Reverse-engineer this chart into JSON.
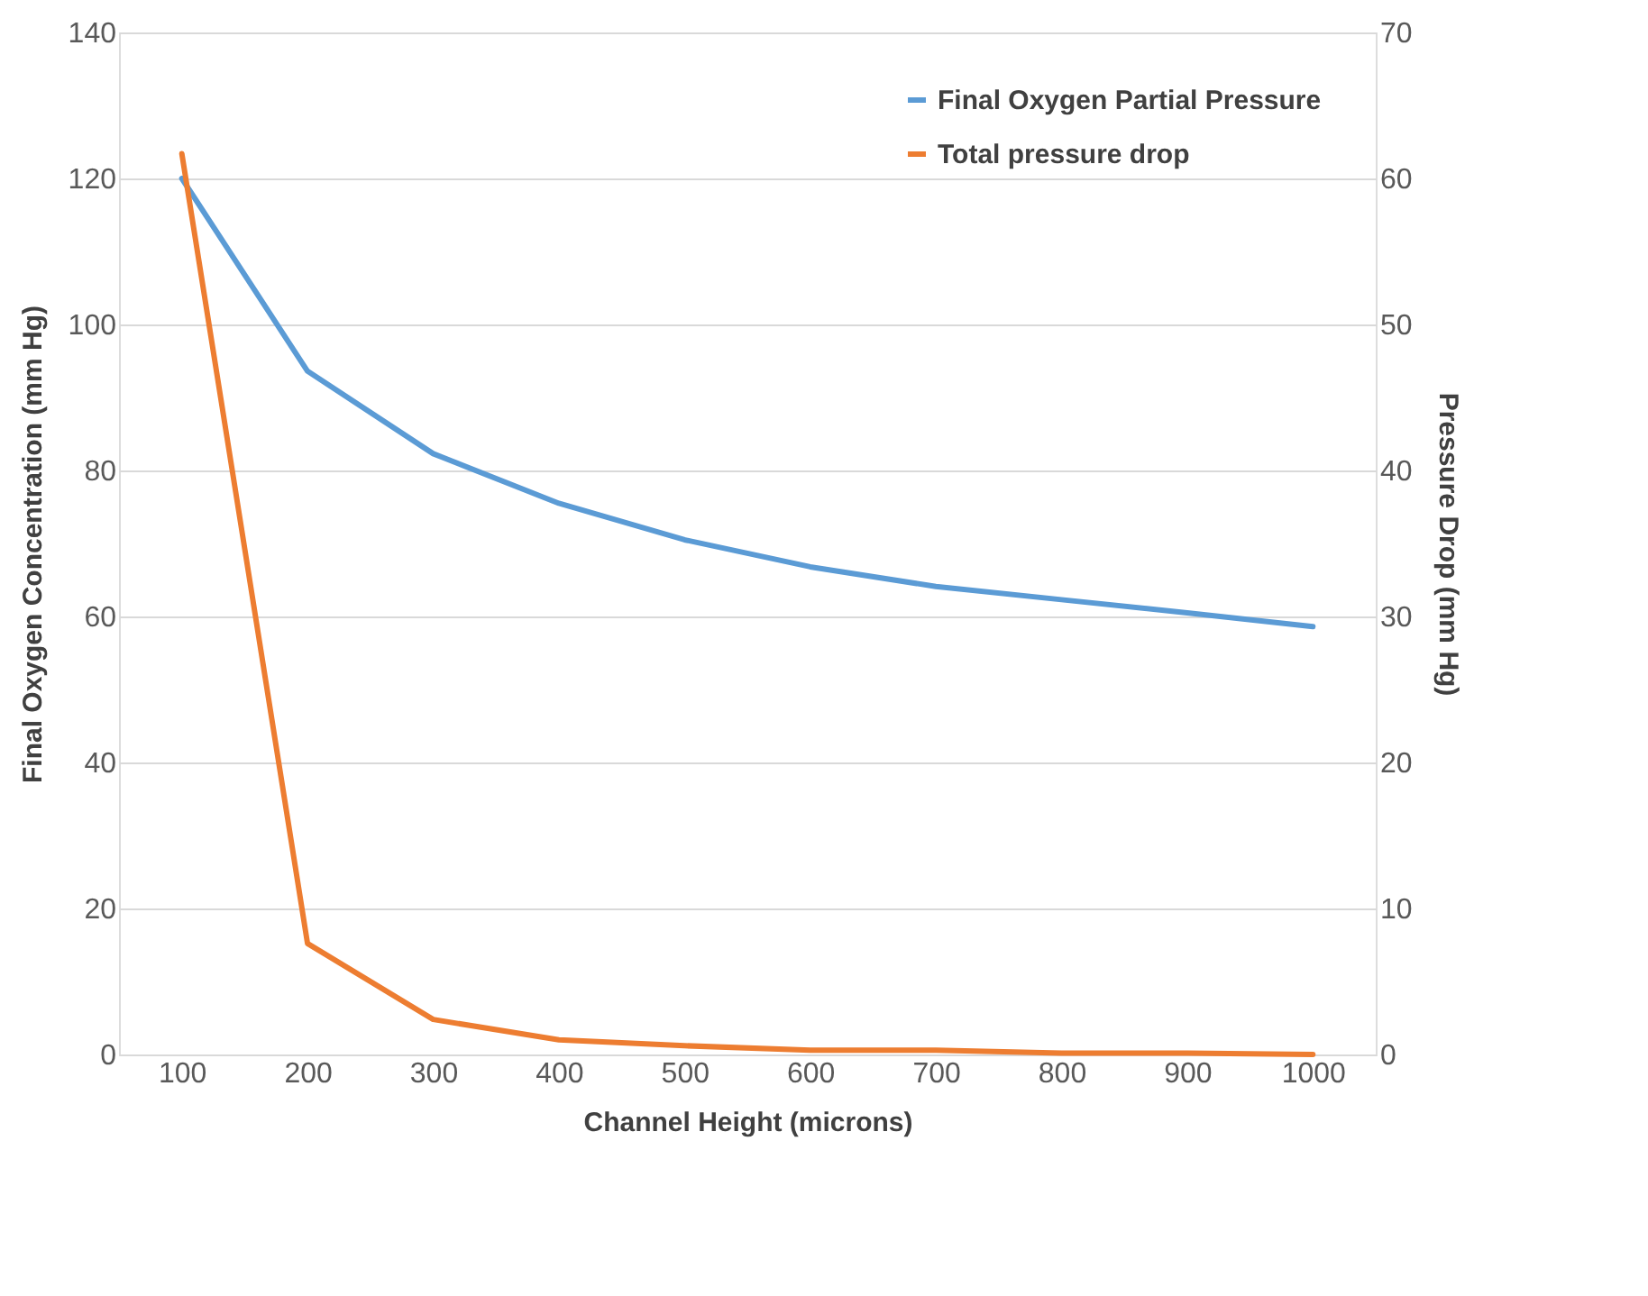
{
  "chart_data": {
    "type": "line",
    "xlabel": "Channel Height (microns)",
    "ylabel": "Final Oxygen Concentration  (mm Hg)",
    "y2label": "Pressure Drop  (mm Hg)",
    "categories": [
      "100",
      "200",
      "300",
      "400",
      "500",
      "600",
      "700",
      "800",
      "900",
      "1000"
    ],
    "series": [
      {
        "name": "Final Oxygen Partial Pressure",
        "color": "#5b9bd5",
        "values": [
          120,
          93.6,
          82.3,
          75.5,
          70.5,
          66.8,
          64.1,
          62.3,
          60.5,
          58.6
        ]
      },
      {
        "name": "Total pressure drop",
        "color": "#ed7d31",
        "axis": "y2",
        "values": [
          61.7,
          7.6,
          2.4,
          1.0,
          0.6,
          0.3,
          0.3,
          0.1,
          0.1,
          0
        ]
      }
    ],
    "ylim": [
      0,
      140
    ],
    "yticks": [
      0,
      20,
      40,
      60,
      80,
      100,
      120,
      140
    ],
    "y2lim": [
      0,
      70
    ],
    "y2ticks": [
      0,
      10,
      20,
      30,
      40,
      50,
      60,
      70
    ],
    "grid": "y",
    "legend": "top right",
    "marker": "none",
    "line_style": "solid"
  }
}
